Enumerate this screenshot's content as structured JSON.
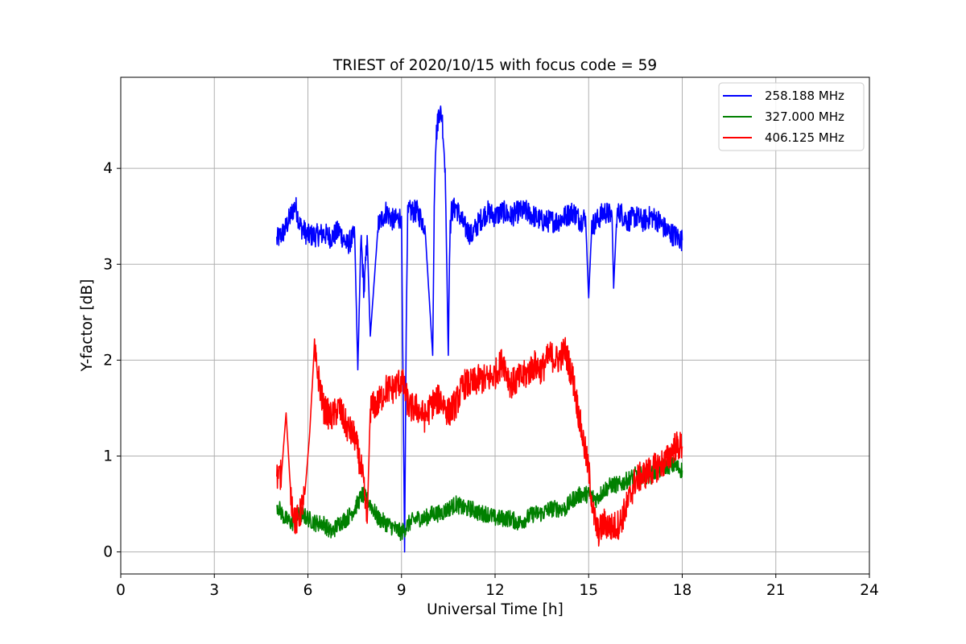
{
  "chart_data": {
    "type": "line",
    "title": "TRIEST of 2020/10/15 with focus code = 59",
    "xlabel": "Universal Time [h]",
    "ylabel": "Y-factor [dB]",
    "xlim": [
      0,
      24
    ],
    "ylim": [
      -0.23,
      4.95
    ],
    "xticks": [
      0,
      3,
      6,
      9,
      12,
      15,
      18,
      21,
      24
    ],
    "yticks": [
      0,
      1,
      2,
      3,
      4
    ],
    "xtick_labels": [
      "0",
      "3",
      "6",
      "9",
      "12",
      "15",
      "18",
      "21",
      "24"
    ],
    "ytick_labels": [
      "0",
      "1",
      "2",
      "3",
      "4"
    ],
    "grid": true,
    "legend_position": "top-right",
    "series": [
      {
        "name": "258.188 MHz",
        "color": "#0000ff",
        "x": [
          5.0,
          5.25,
          5.5,
          5.6,
          5.75,
          6.0,
          6.25,
          6.5,
          6.75,
          7.0,
          7.25,
          7.5,
          7.6,
          7.7,
          7.8,
          7.9,
          8.0,
          8.25,
          8.5,
          8.75,
          9.0,
          9.1,
          9.15,
          9.2,
          9.25,
          9.5,
          9.75,
          10.0,
          10.05,
          10.1,
          10.2,
          10.3,
          10.4,
          10.5,
          10.55,
          10.6,
          10.75,
          11.0,
          11.25,
          11.5,
          11.75,
          12.0,
          12.25,
          12.5,
          12.75,
          13.0,
          13.25,
          13.5,
          13.75,
          14.0,
          14.25,
          14.5,
          14.75,
          14.9,
          15.0,
          15.1,
          15.25,
          15.5,
          15.75,
          15.8,
          15.9,
          16.0,
          16.25,
          16.5,
          16.75,
          17.0,
          17.25,
          17.5,
          17.75,
          18.0
        ],
        "values": [
          3.25,
          3.35,
          3.55,
          3.62,
          3.4,
          3.3,
          3.3,
          3.32,
          3.28,
          3.35,
          3.2,
          3.3,
          1.9,
          3.3,
          2.7,
          3.3,
          2.25,
          3.4,
          3.55,
          3.45,
          3.5,
          0.0,
          2.3,
          3.5,
          3.55,
          3.55,
          3.4,
          2.05,
          3.6,
          4.3,
          4.6,
          4.55,
          4.0,
          2.05,
          3.3,
          3.55,
          3.6,
          3.4,
          3.3,
          3.45,
          3.55,
          3.5,
          3.55,
          3.5,
          3.55,
          3.55,
          3.5,
          3.45,
          3.45,
          3.45,
          3.5,
          3.55,
          3.45,
          3.5,
          2.65,
          3.4,
          3.45,
          3.55,
          3.5,
          2.75,
          3.5,
          3.55,
          3.45,
          3.5,
          3.45,
          3.5,
          3.45,
          3.35,
          3.3,
          3.25
        ]
      },
      {
        "name": "327.000 MHz",
        "color": "#008000",
        "x": [
          5.0,
          5.25,
          5.5,
          5.75,
          6.0,
          6.25,
          6.5,
          6.75,
          7.0,
          7.25,
          7.5,
          7.75,
          8.0,
          8.25,
          8.5,
          8.75,
          9.0,
          9.25,
          9.5,
          9.75,
          10.0,
          10.25,
          10.5,
          10.75,
          11.0,
          11.25,
          11.5,
          11.75,
          12.0,
          12.25,
          12.5,
          12.75,
          13.0,
          13.25,
          13.5,
          13.75,
          14.0,
          14.25,
          14.5,
          14.75,
          15.0,
          15.25,
          15.5,
          15.75,
          16.0,
          16.25,
          16.5,
          16.75,
          17.0,
          17.25,
          17.5,
          17.75,
          18.0
        ],
        "values": [
          0.5,
          0.35,
          0.3,
          0.4,
          0.35,
          0.3,
          0.3,
          0.2,
          0.3,
          0.35,
          0.45,
          0.6,
          0.5,
          0.35,
          0.3,
          0.25,
          0.2,
          0.3,
          0.35,
          0.35,
          0.4,
          0.4,
          0.45,
          0.5,
          0.45,
          0.45,
          0.4,
          0.4,
          0.35,
          0.35,
          0.35,
          0.3,
          0.35,
          0.4,
          0.4,
          0.45,
          0.45,
          0.45,
          0.55,
          0.6,
          0.6,
          0.55,
          0.65,
          0.7,
          0.7,
          0.75,
          0.8,
          0.8,
          0.8,
          0.85,
          0.9,
          0.9,
          0.85
        ]
      },
      {
        "name": "406.125 MHz",
        "color": "#ff0000",
        "x": [
          5.0,
          5.15,
          5.3,
          5.45,
          5.6,
          5.75,
          5.9,
          6.05,
          6.2,
          6.35,
          6.5,
          6.75,
          7.0,
          7.25,
          7.5,
          7.75,
          7.9,
          8.0,
          8.25,
          8.5,
          8.75,
          9.0,
          9.25,
          9.5,
          9.75,
          10.0,
          10.25,
          10.5,
          10.75,
          11.0,
          11.25,
          11.5,
          11.75,
          12.0,
          12.25,
          12.5,
          12.75,
          13.0,
          13.25,
          13.5,
          13.75,
          14.0,
          14.25,
          14.5,
          14.75,
          15.0,
          15.15,
          15.3,
          15.5,
          15.75,
          16.0,
          16.25,
          16.5,
          16.75,
          17.0,
          17.25,
          17.5,
          17.75,
          18.0
        ],
        "values": [
          0.8,
          0.8,
          1.45,
          0.6,
          0.3,
          0.4,
          0.6,
          1.2,
          2.1,
          1.8,
          1.5,
          1.4,
          1.5,
          1.3,
          1.2,
          0.8,
          0.3,
          1.5,
          1.55,
          1.7,
          1.7,
          1.8,
          1.5,
          1.5,
          1.4,
          1.55,
          1.6,
          1.45,
          1.55,
          1.75,
          1.75,
          1.8,
          1.8,
          1.85,
          2.0,
          1.75,
          1.8,
          1.85,
          1.95,
          1.9,
          2.05,
          2.0,
          2.1,
          1.8,
          1.3,
          0.85,
          0.4,
          0.2,
          0.3,
          0.25,
          0.3,
          0.5,
          0.75,
          0.8,
          0.85,
          0.9,
          0.95,
          1.1,
          1.1
        ]
      }
    ]
  }
}
